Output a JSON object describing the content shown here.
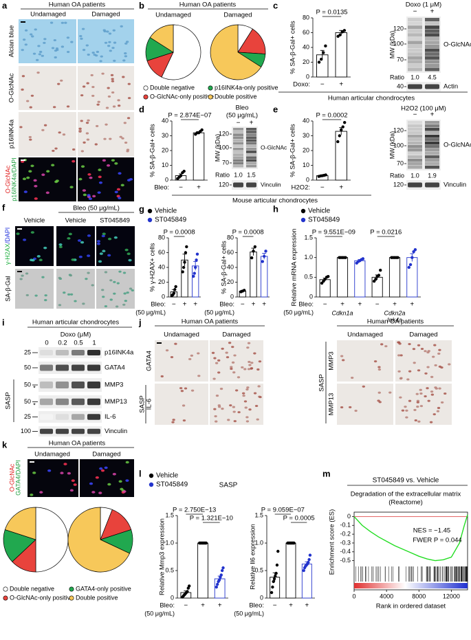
{
  "a": {
    "label": "a",
    "title": "Human OA patients",
    "columns": [
      "Undamaged",
      "Damaged"
    ],
    "rows": [
      "Alcian blue",
      "O-GlcNAc",
      "p16INK4a"
    ],
    "stain": [
      "O-GlcNAc",
      "p16INK4a/DAPI"
    ]
  },
  "b": {
    "label": "b",
    "title": "Human OA patients",
    "legend": [
      "Double negative",
      "O-GlcNAc-only positive",
      "p16INK4a-only positive",
      "Double positive"
    ],
    "colors": [
      "#ffffff",
      "#e8433c",
      "#21a84f",
      "#f7c85a"
    ],
    "pies": [
      {
        "name": "Undamaged",
        "values": [
          57,
          13,
          14,
          16
        ]
      },
      {
        "name": "Damaged",
        "values": [
          9,
          17,
          8,
          66
        ]
      }
    ]
  },
  "c": {
    "label": "c",
    "chart": {
      "ylabel": "% SA-β-Gal+ cells",
      "ylim": [
        0,
        80
      ],
      "yticks": [
        0,
        20,
        40,
        60,
        80
      ],
      "condition": "Doxo:",
      "signs": [
        "−",
        "+"
      ],
      "values": [
        30,
        60
      ],
      "errors": [
        6,
        3
      ],
      "points": [
        [
          20,
          24,
          33,
          42
        ],
        [
          55,
          57,
          61,
          63
        ]
      ],
      "colors": [
        "#000000",
        "#000000"
      ],
      "pvalues": [
        "P = 0.0135"
      ]
    },
    "blot": {
      "title": "Doxo (1 μM)",
      "lanes": [
        "−",
        "+"
      ],
      "mw_label": "MW (kDa)",
      "mw": [
        120,
        100,
        70
      ],
      "target": "O-GlcNAc",
      "ratio_label": "Ratio",
      "ratios": [
        "1.0",
        "4.5"
      ],
      "loading": "Actin",
      "loading_mw": 40
    },
    "footer": "Human articular chondrocytes"
  },
  "d": {
    "label": "d",
    "chart": {
      "ylabel": "% SA-β-Gal+ cells",
      "ylim": [
        0,
        40
      ],
      "yticks": [
        0,
        10,
        20,
        30,
        40
      ],
      "condition": "Bleo:",
      "signs": [
        "−",
        "+"
      ],
      "values": [
        3,
        32
      ],
      "errors": [
        1.2,
        0.8
      ],
      "points": [
        [
          1,
          2,
          3,
          5,
          6
        ],
        [
          31,
          32,
          32,
          33,
          34
        ]
      ],
      "colors": [
        "#000000",
        "#000000"
      ],
      "pvalues": [
        "P = 2.874E−07"
      ]
    },
    "blot": {
      "title": [
        "Bleo",
        "(50 μg/mL)"
      ],
      "lanes": [
        "−",
        "+"
      ],
      "mw_label": "MW (kDa)",
      "mw": [
        120,
        100,
        70
      ],
      "target": "O-GlcNAc",
      "ratio_label": "Ratio",
      "ratios": [
        "1.0",
        "1.5"
      ],
      "loading": "Vinculin",
      "loading_mw": 120
    },
    "footer": "Mouse articular chondrocytes"
  },
  "e": {
    "label": "e",
    "chart": {
      "ylabel": "% SA-β-Gal+ cells",
      "ylim": [
        0,
        40
      ],
      "yticks": [
        0,
        10,
        20,
        30,
        40
      ],
      "condition": "H2O2:",
      "signs": [
        "−",
        "+"
      ],
      "values": [
        3,
        33
      ],
      "errors": [
        0.5,
        2.5
      ],
      "points": [
        [
          2.5,
          2.8,
          3,
          3.2,
          3.5
        ],
        [
          26,
          30,
          34,
          36,
          39
        ]
      ],
      "colors": [
        "#000000",
        "#000000"
      ],
      "pvalues": [
        "P = 0.0002"
      ]
    },
    "blot": {
      "title": "H2O2 (100 μM)",
      "lanes": [
        "−",
        "+"
      ],
      "mw_label": "MW (kDa)",
      "mw": [
        120,
        100,
        70
      ],
      "target": "O-GlcNAc",
      "ratio_label": "Ratio",
      "ratios": [
        "1.0",
        "1.9"
      ],
      "loading": "Vinculin",
      "loading_mw": 120
    }
  },
  "f": {
    "label": "f",
    "treatment": "Bleo (50 μg/mL)",
    "columns": [
      "Vehicle",
      "Vehicle",
      "ST045849"
    ],
    "rows": [
      [
        "γ-H2AX",
        "/DAPI"
      ],
      "SA-β-Gal"
    ]
  },
  "g": {
    "label": "g",
    "legend": [
      "Vehicle",
      "ST045849"
    ],
    "legend_colors": [
      "#000000",
      "#2233cc"
    ],
    "charts": [
      {
        "ylabel": "% γ-H2AX+ cells",
        "ylim": [
          0,
          80
        ],
        "yticks": [
          0,
          20,
          40,
          60,
          80
        ],
        "condition": "Bleo:",
        "unit": "(50 μg/mL)",
        "signs": [
          "−",
          "+",
          "+"
        ],
        "values": [
          7,
          50,
          42
        ],
        "errors": [
          3,
          8,
          6
        ],
        "points": [
          [
            2,
            3,
            5,
            10,
            14
          ],
          [
            34,
            40,
            47,
            60,
            68
          ],
          [
            28,
            32,
            40,
            50,
            58
          ]
        ],
        "colors": [
          "#000000",
          "#000000",
          "#2233cc"
        ],
        "pvalues": [
          "P = 0.0008"
        ]
      },
      {
        "ylabel": "% SA-β-Gal+ cells",
        "ylim": [
          0,
          80
        ],
        "yticks": [
          0,
          20,
          40,
          60,
          80
        ],
        "condition": "Bleo:",
        "unit": "(50 μg/mL)",
        "signs": [
          "−",
          "+",
          "+"
        ],
        "values": [
          8,
          61,
          55
        ],
        "errors": [
          1,
          5,
          4
        ],
        "points": [
          [
            7,
            8,
            9
          ],
          [
            53,
            62,
            68
          ],
          [
            48,
            55,
            62
          ]
        ],
        "colors": [
          "#000000",
          "#000000",
          "#2233cc"
        ],
        "pvalues": [
          "P = 0.0008"
        ]
      }
    ]
  },
  "h": {
    "label": "h",
    "legend": [
      "Vehicle",
      "ST045849"
    ],
    "legend_colors": [
      "#000000",
      "#2233cc"
    ],
    "chart": {
      "ylabel": "Relative mRNA expression",
      "ylim": [
        0,
        1.5
      ],
      "yticks": [
        0,
        0.5,
        {
          "value": 1,
          "label": "1.0"
        },
        1.5
      ],
      "condition": "Bleo:",
      "unit": "(50 μg/mL)",
      "signs": [
        "−",
        "+",
        "+",
        "−",
        "+",
        "+"
      ],
      "values": [
        0.44,
        1,
        0.92,
        0.5,
        1,
        1
      ],
      "errors": [
        0.04,
        0,
        0.03,
        0.06,
        0,
        0.1
      ],
      "points": [
        [
          0.35,
          0.4,
          0.45,
          0.5,
          0.52
        ],
        [
          1,
          1,
          1,
          1,
          1
        ],
        [
          0.86,
          0.9,
          0.92,
          0.95,
          0.97
        ],
        [
          0.4,
          0.45,
          0.52,
          0.55,
          0.68
        ],
        [
          1,
          1,
          1,
          1,
          1
        ],
        [
          0.75,
          0.82,
          1,
          1.15,
          1.2
        ]
      ],
      "colors": [
        "#000000",
        "#000000",
        "#2233cc",
        "#000000",
        "#000000",
        "#2233cc"
      ],
      "categories": [
        [
          "Cdkn1a"
        ],
        [
          "Cdkn2a",
          "Ink4a"
        ]
      ],
      "pvalues": [
        "P = 9.551E−09",
        "P = 0.0216"
      ]
    }
  },
  "i": {
    "label": "i",
    "title": "Human articular chondrocytes",
    "treatment": "Doxo (μM)",
    "doses": [
      0,
      0.2,
      0.5,
      1
    ],
    "bands": [
      {
        "name": "p16INK4a",
        "mw": 25
      },
      {
        "name": "GATA4",
        "mw": 50
      },
      {
        "name": "MMP3",
        "mw": 50
      },
      {
        "name": "MMP13",
        "mw": 50
      },
      {
        "name": "IL-6",
        "mw": 25
      },
      {
        "name": "Vinculin",
        "mw": 100
      }
    ],
    "group": "SASP",
    "marks": [
      "*",
      "*"
    ]
  },
  "j": {
    "label": "j",
    "left": {
      "title": "Human OA patients",
      "columns": [
        "Undamaged",
        "Damaged"
      ],
      "rows": [
        "GATA4",
        "IL-6"
      ],
      "group": "SASP"
    },
    "right": {
      "title": "Human OA patients",
      "columns": [
        "Undamaged",
        "Damaged"
      ],
      "rows": [
        "MMP3",
        "MMP13"
      ],
      "group": "SASP"
    }
  },
  "k": {
    "label": "k",
    "title": "Human OA patients",
    "columns": [
      "Undamaged",
      "Damaged"
    ],
    "stain": [
      "O-GlcNAc",
      "GATA4/DAPI"
    ],
    "legend": [
      "Double negative",
      "O-GlcNAc-only positive",
      "GATA4-only positive",
      "Double positive"
    ],
    "colors": [
      "#ffffff",
      "#e8433c",
      "#21a84f",
      "#f7c85a"
    ],
    "pies": [
      {
        "values": [
          50,
          13,
          17,
          20
        ]
      },
      {
        "values": [
          6,
          14,
          12,
          68
        ]
      }
    ]
  },
  "l": {
    "label": "l",
    "legend": [
      "Vehicle",
      "ST045849"
    ],
    "legend_colors": [
      "#000000",
      "#2233cc"
    ],
    "group": "SASP",
    "charts": [
      {
        "ylabel": "Relative Mmp3 expression",
        "ylim": [
          0,
          1.5
        ],
        "yticks": [
          0,
          0.5,
          {
            "value": 1,
            "label": "1.0"
          },
          1.5
        ],
        "condition": "Bleo:",
        "unit": "(50 μg/mL)",
        "signs": [
          "−",
          "+",
          "+"
        ],
        "values": [
          0.1,
          1,
          0.35
        ],
        "errors": [
          0.03,
          0,
          0.05
        ],
        "points": [
          [
            0.02,
            0.04,
            0.06,
            0.08,
            0.1,
            0.12,
            0.18,
            0.22
          ],
          [
            1,
            1,
            1,
            1,
            1,
            1,
            1,
            1
          ],
          [
            0.2,
            0.25,
            0.3,
            0.33,
            0.38,
            0.42,
            0.5,
            0.55
          ]
        ],
        "colors": [
          "#000000",
          "#000000",
          "#2233cc"
        ],
        "pvalues": [
          "P = 2.750E−13",
          "P = 1.321E−10"
        ]
      },
      {
        "ylabel": "Relative Il6 expression",
        "ylim": [
          0,
          1.5
        ],
        "yticks": [
          0,
          0.5,
          {
            "value": 1,
            "label": "1.0"
          },
          1.5
        ],
        "condition": "Bleo:",
        "unit": "(50 μg/mL)",
        "signs": [
          "−",
          "+",
          "+"
        ],
        "values": [
          0.38,
          1,
          0.62
        ],
        "errors": [
          0.08,
          0,
          0.04
        ],
        "points": [
          [
            0.1,
            0.2,
            0.3,
            0.35,
            0.4,
            0.45,
            0.6,
            0.85
          ],
          [
            1,
            1,
            1,
            1,
            1,
            1,
            1,
            1
          ],
          [
            0.5,
            0.55,
            0.58,
            0.6,
            0.62,
            0.65,
            0.7,
            0.78
          ]
        ],
        "colors": [
          "#000000",
          "#000000",
          "#2233cc"
        ],
        "pvalues": [
          "P = 9.059E−07",
          "P = 0.0005"
        ]
      }
    ]
  },
  "m": {
    "label": "m",
    "title": "ST045849 vs. Vehicle",
    "subtitle": [
      "Degradation of the extracellular matrix",
      "(Reactome)"
    ],
    "ylabel": "Enrichment score (ES)",
    "xlabel": "Rank in ordered dataset",
    "annotations": [
      "NES = −1.45",
      "FWER P = 0.044"
    ],
    "x": [
      0,
      1000,
      2000,
      3000,
      4000,
      5000,
      6000,
      7000,
      8000,
      9000,
      10000,
      11000,
      12000,
      13000,
      13600,
      14000
    ],
    "y": [
      0,
      -0.1,
      -0.17,
      -0.23,
      -0.28,
      -0.33,
      -0.37,
      -0.41,
      -0.45,
      -0.48,
      -0.5,
      -0.49,
      -0.46,
      -0.3,
      -0.1,
      0.02
    ],
    "xlim": [
      0,
      14000
    ],
    "ylim": [
      -0.55,
      0.05
    ],
    "xticks": [
      0,
      4000,
      8000,
      12000
    ],
    "yticks": [
      0,
      -0.1,
      -0.2,
      -0.3,
      -0.4,
      -0.5
    ],
    "color": "#22dd22"
  }
}
